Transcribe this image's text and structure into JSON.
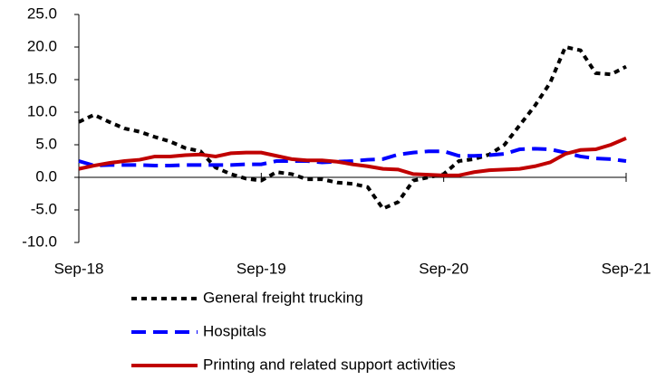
{
  "chart_data": {
    "type": "line",
    "categories": [
      "Sep-18",
      null,
      null,
      null,
      null,
      null,
      null,
      null,
      null,
      null,
      null,
      null,
      "Sep-19",
      null,
      null,
      null,
      null,
      null,
      null,
      null,
      null,
      null,
      null,
      null,
      "Sep-20",
      null,
      null,
      null,
      null,
      null,
      null,
      null,
      null,
      null,
      null,
      null,
      "Sep-21"
    ],
    "ylim": [
      -10,
      25
    ],
    "yticks": [
      {
        "value": -10,
        "label": "-10.0"
      },
      {
        "value": -5,
        "label": "-5.0"
      },
      {
        "value": 0,
        "label": "0.0"
      },
      {
        "value": 5,
        "label": "5.0"
      },
      {
        "value": 10,
        "label": "10.0"
      },
      {
        "value": 15,
        "label": "15.0"
      },
      {
        "value": 20,
        "label": "20.0"
      },
      {
        "value": 25,
        "label": "25.0"
      }
    ],
    "grid": false,
    "series": [
      {
        "name": "General freight trucking",
        "color": "#000000",
        "values": [
          8.5,
          9.6,
          8.5,
          7.5,
          7.0,
          6.2,
          5.5,
          4.5,
          4.0,
          1.5,
          0.5,
          -0.2,
          -0.5,
          0.8,
          0.5,
          -0.3,
          -0.3,
          -0.8,
          -1.0,
          -1.5,
          -4.8,
          -3.8,
          -0.5,
          0.0,
          0.5,
          2.5,
          2.8,
          3.5,
          5.0,
          8.0,
          11.0,
          14.5,
          20.0,
          19.5,
          16.0,
          15.8,
          17.0
        ]
      },
      {
        "name": "Hospitals",
        "color": "#0000ff",
        "values": [
          2.5,
          1.8,
          1.9,
          1.9,
          1.9,
          1.8,
          1.8,
          1.9,
          1.9,
          1.9,
          1.9,
          2.0,
          2.0,
          2.5,
          2.5,
          2.5,
          2.3,
          2.4,
          2.5,
          2.7,
          2.8,
          3.5,
          3.8,
          4.0,
          4.0,
          3.3,
          3.3,
          3.4,
          3.6,
          4.3,
          4.4,
          4.3,
          3.8,
          3.2,
          2.9,
          2.8,
          2.5
        ]
      },
      {
        "name": "Printing and related support activities",
        "color": "#c00000",
        "values": [
          1.3,
          1.8,
          2.2,
          2.5,
          2.7,
          3.2,
          3.2,
          3.4,
          3.5,
          3.2,
          3.7,
          3.8,
          3.8,
          3.3,
          2.8,
          2.6,
          2.6,
          2.4,
          2.0,
          1.7,
          1.3,
          1.2,
          0.5,
          0.4,
          0.3,
          0.3,
          0.8,
          1.1,
          1.2,
          1.3,
          1.7,
          2.3,
          3.6,
          4.2,
          4.3,
          5.0,
          6.0
        ]
      }
    ]
  }
}
